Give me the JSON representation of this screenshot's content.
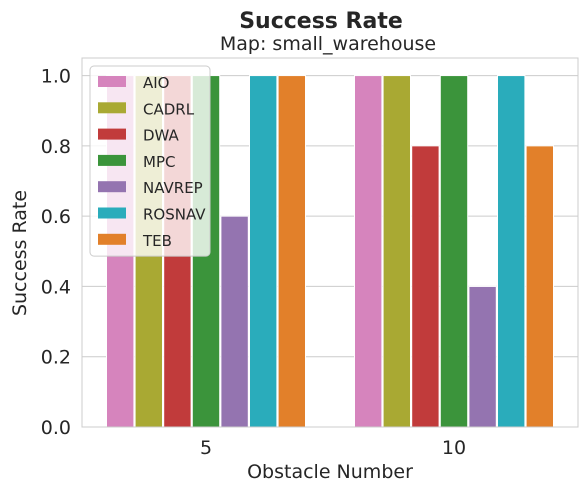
{
  "chart_data": {
    "type": "bar",
    "title": "Success Rate",
    "subtitle": "Map: small_warehouse",
    "xlabel": "Obstacle Number",
    "ylabel": "Success Rate",
    "categories": [
      "5",
      "10"
    ],
    "ylim": [
      0,
      1.05
    ],
    "yticks": [
      "0.0",
      "0.2",
      "0.4",
      "0.6",
      "0.8",
      "1.0"
    ],
    "grid": true,
    "legend_position": "top-left",
    "series": [
      {
        "name": "AIO",
        "color": "#d684bd",
        "values": [
          1.0,
          1.0
        ]
      },
      {
        "name": "CADRL",
        "color": "#a9a933",
        "values": [
          1.0,
          1.0
        ]
      },
      {
        "name": "DWA",
        "color": "#c13b3b",
        "values": [
          1.0,
          0.8
        ]
      },
      {
        "name": "MPC",
        "color": "#3b943b",
        "values": [
          1.0,
          1.0
        ]
      },
      {
        "name": "NAVREP",
        "color": "#9474b0",
        "values": [
          0.6,
          0.4
        ]
      },
      {
        "name": "ROSNAV",
        "color": "#2aacbb",
        "values": [
          1.0,
          1.0
        ]
      },
      {
        "name": "TEB",
        "color": "#e2802a",
        "values": [
          1.0,
          0.8
        ]
      }
    ]
  }
}
